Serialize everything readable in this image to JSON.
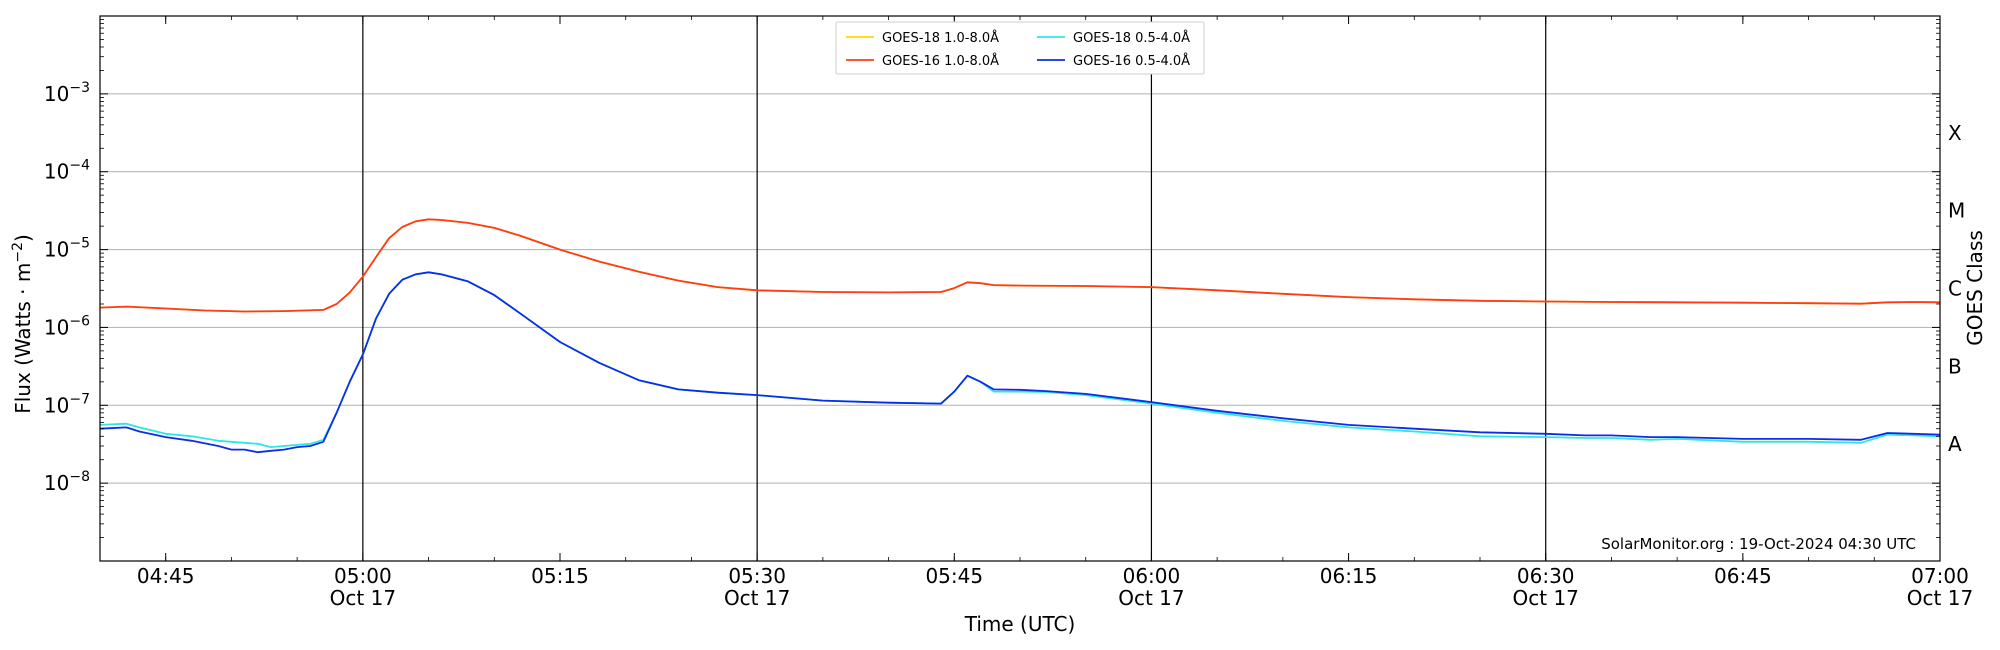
{
  "chart_data": {
    "type": "line",
    "xlabel": "Time (UTC)",
    "ylabel": "Flux (Watts · m⁻²)",
    "y2label": "GOES Class",
    "yscale": "log",
    "ylim": [
      1e-09,
      0.01
    ],
    "xlim": [
      "04:40",
      "07:00"
    ],
    "grid": "horizontal",
    "legend_position": "top-center",
    "credit": "SolarMonitor.org : 19-Oct-2024 04:30 UTC",
    "y_ticks": [
      {
        "value": 1e-08,
        "base": "10",
        "exp": "−8"
      },
      {
        "value": 1e-07,
        "base": "10",
        "exp": "−7"
      },
      {
        "value": 1e-06,
        "base": "10",
        "exp": "−6"
      },
      {
        "value": 1e-05,
        "base": "10",
        "exp": "−5"
      },
      {
        "value": 0.0001,
        "base": "10",
        "exp": "−4"
      },
      {
        "value": 0.001,
        "base": "10",
        "exp": "−3"
      }
    ],
    "goes_classes": [
      {
        "label": "A",
        "value": 3.16e-08
      },
      {
        "label": "B",
        "value": 3.16e-07
      },
      {
        "label": "C",
        "value": 3.16e-06
      },
      {
        "label": "M",
        "value": 3.16e-05
      },
      {
        "label": "X",
        "value": 0.000316
      }
    ],
    "x_ticks": [
      {
        "time": "04:45",
        "label": "04:45",
        "date": ""
      },
      {
        "time": "05:00",
        "label": "05:00",
        "date": "Oct 17"
      },
      {
        "time": "05:15",
        "label": "05:15",
        "date": ""
      },
      {
        "time": "05:30",
        "label": "05:30",
        "date": "Oct 17"
      },
      {
        "time": "05:45",
        "label": "05:45",
        "date": ""
      },
      {
        "time": "06:00",
        "label": "06:00",
        "date": "Oct 17"
      },
      {
        "time": "06:15",
        "label": "06:15",
        "date": ""
      },
      {
        "time": "06:30",
        "label": "06:30",
        "date": "Oct 17"
      },
      {
        "time": "06:45",
        "label": "06:45",
        "date": ""
      },
      {
        "time": "07:00",
        "label": "07:00",
        "date": "Oct 17"
      }
    ],
    "vlines": [
      "05:00",
      "05:30",
      "06:00",
      "06:30"
    ],
    "series": [
      {
        "name": "GOES-18 1.0-8.0Å",
        "color": "#ffd700",
        "x": [
          "04:40",
          "04:42",
          "04:45",
          "04:48",
          "04:51",
          "04:54",
          "04:57",
          "04:58",
          "04:59",
          "05:00",
          "05:01",
          "05:02",
          "05:03",
          "05:04",
          "05:05",
          "05:06",
          "05:08",
          "05:10",
          "05:12",
          "05:15",
          "05:18",
          "05:21",
          "05:24",
          "05:27",
          "05:30",
          "05:35",
          "05:40",
          "05:44",
          "05:45",
          "05:46",
          "05:47",
          "05:48",
          "05:50",
          "05:55",
          "06:00",
          "06:05",
          "06:10",
          "06:15",
          "06:20",
          "06:25",
          "06:30",
          "06:35",
          "06:40",
          "06:45",
          "06:50",
          "06:54",
          "06:56",
          "06:58",
          "07:00"
        ],
        "y": [
          1.8e-06,
          1.85e-06,
          1.75e-06,
          1.65e-06,
          1.6e-06,
          1.62e-06,
          1.68e-06,
          2e-06,
          2.8e-06,
          4.5e-06,
          8e-06,
          1.4e-05,
          1.95e-05,
          2.3e-05,
          2.45e-05,
          2.4e-05,
          2.2e-05,
          1.9e-05,
          1.5e-05,
          1e-05,
          7e-06,
          5.2e-06,
          4e-06,
          3.3e-06,
          3e-06,
          2.85e-06,
          2.82e-06,
          2.85e-06,
          3.2e-06,
          3.8e-06,
          3.7e-06,
          3.5e-06,
          3.45e-06,
          3.4e-06,
          3.3e-06,
          3e-06,
          2.7e-06,
          2.45e-06,
          2.3e-06,
          2.2e-06,
          2.15e-06,
          2.12e-06,
          2.1e-06,
          2.08e-06,
          2.05e-06,
          2.02e-06,
          2.1e-06,
          2.12e-06,
          2.1e-06
        ]
      },
      {
        "name": "GOES-16 1.0-8.0Å",
        "color": "#ff3b1a",
        "x": [
          "04:40",
          "04:42",
          "04:45",
          "04:48",
          "04:51",
          "04:54",
          "04:57",
          "04:58",
          "04:59",
          "05:00",
          "05:01",
          "05:02",
          "05:03",
          "05:04",
          "05:05",
          "05:06",
          "05:08",
          "05:10",
          "05:12",
          "05:15",
          "05:18",
          "05:21",
          "05:24",
          "05:27",
          "05:30",
          "05:35",
          "05:40",
          "05:44",
          "05:45",
          "05:46",
          "05:47",
          "05:48",
          "05:50",
          "05:55",
          "06:00",
          "06:05",
          "06:10",
          "06:15",
          "06:20",
          "06:25",
          "06:30",
          "06:35",
          "06:40",
          "06:45",
          "06:50",
          "06:54",
          "06:56",
          "06:58",
          "07:00"
        ],
        "y": [
          1.8e-06,
          1.85e-06,
          1.75e-06,
          1.65e-06,
          1.6e-06,
          1.62e-06,
          1.68e-06,
          2e-06,
          2.8e-06,
          4.5e-06,
          8e-06,
          1.4e-05,
          1.95e-05,
          2.3e-05,
          2.45e-05,
          2.4e-05,
          2.2e-05,
          1.9e-05,
          1.5e-05,
          1e-05,
          7e-06,
          5.2e-06,
          4e-06,
          3.3e-06,
          3e-06,
          2.85e-06,
          2.82e-06,
          2.85e-06,
          3.2e-06,
          3.8e-06,
          3.7e-06,
          3.5e-06,
          3.45e-06,
          3.4e-06,
          3.3e-06,
          3e-06,
          2.7e-06,
          2.45e-06,
          2.3e-06,
          2.2e-06,
          2.15e-06,
          2.12e-06,
          2.1e-06,
          2.08e-06,
          2.05e-06,
          2.02e-06,
          2.1e-06,
          2.12e-06,
          2.1e-06
        ]
      },
      {
        "name": "GOES-18 0.5-4.0Å",
        "color": "#2ee6e6",
        "x": [
          "04:40",
          "04:42",
          "04:43",
          "04:45",
          "04:47",
          "04:49",
          "04:50",
          "04:51",
          "04:52",
          "04:53",
          "04:54",
          "04:55",
          "04:56",
          "04:57",
          "04:58",
          "04:59",
          "05:00",
          "05:01",
          "05:02",
          "05:03",
          "05:04",
          "05:05",
          "05:06",
          "05:08",
          "05:10",
          "05:12",
          "05:15",
          "05:18",
          "05:21",
          "05:24",
          "05:27",
          "05:30",
          "05:35",
          "05:40",
          "05:44",
          "05:45",
          "05:46",
          "05:47",
          "05:48",
          "05:50",
          "05:52",
          "05:55",
          "06:00",
          "06:05",
          "06:10",
          "06:15",
          "06:20",
          "06:25",
          "06:30",
          "06:33",
          "06:35",
          "06:38",
          "06:40",
          "06:45",
          "06:50",
          "06:54",
          "06:56",
          "06:58",
          "07:00"
        ],
        "y": [
          5.6e-08,
          5.8e-08,
          5.2e-08,
          4.3e-08,
          4e-08,
          3.5e-08,
          3.4e-08,
          3.3e-08,
          3.2e-08,
          2.9e-08,
          3e-08,
          3.1e-08,
          3.2e-08,
          3.6e-08,
          8e-08,
          2e-07,
          4.5e-07,
          1.3e-06,
          2.7e-06,
          4.1e-06,
          4.8e-06,
          5.1e-06,
          4.8e-06,
          3.9e-06,
          2.6e-06,
          1.5e-06,
          6.5e-07,
          3.5e-07,
          2.1e-07,
          1.6e-07,
          1.45e-07,
          1.35e-07,
          1.15e-07,
          1.08e-07,
          1.05e-07,
          1.5e-07,
          2.4e-07,
          2e-07,
          1.5e-07,
          1.5e-07,
          1.48e-07,
          1.35e-07,
          1.05e-07,
          8e-08,
          6.3e-08,
          5.2e-08,
          4.6e-08,
          4e-08,
          3.9e-08,
          3.8e-08,
          3.8e-08,
          3.6e-08,
          3.7e-08,
          3.4e-08,
          3.4e-08,
          3.3e-08,
          4.2e-08,
          4.1e-08,
          4e-08
        ]
      },
      {
        "name": "GOES-16 0.5-4.0Å",
        "color": "#0a2ee6",
        "x": [
          "04:40",
          "04:42",
          "04:43",
          "04:45",
          "04:47",
          "04:49",
          "04:50",
          "04:51",
          "04:52",
          "04:53",
          "04:54",
          "04:55",
          "04:56",
          "04:57",
          "04:58",
          "04:59",
          "05:00",
          "05:01",
          "05:02",
          "05:03",
          "05:04",
          "05:05",
          "05:06",
          "05:08",
          "05:10",
          "05:12",
          "05:15",
          "05:18",
          "05:21",
          "05:24",
          "05:27",
          "05:30",
          "05:35",
          "05:40",
          "05:44",
          "05:45",
          "05:46",
          "05:47",
          "05:48",
          "05:50",
          "05:52",
          "05:55",
          "06:00",
          "06:05",
          "06:10",
          "06:15",
          "06:20",
          "06:25",
          "06:30",
          "06:33",
          "06:35",
          "06:38",
          "06:40",
          "06:45",
          "06:50",
          "06:54",
          "06:56",
          "06:58",
          "07:00"
        ],
        "y": [
          5e-08,
          5.2e-08,
          4.6e-08,
          3.9e-08,
          3.5e-08,
          3e-08,
          2.7e-08,
          2.7e-08,
          2.5e-08,
          2.6e-08,
          2.7e-08,
          2.9e-08,
          3e-08,
          3.4e-08,
          8e-08,
          2e-07,
          4.5e-07,
          1.3e-06,
          2.7e-06,
          4.1e-06,
          4.8e-06,
          5.1e-06,
          4.8e-06,
          3.9e-06,
          2.6e-06,
          1.5e-06,
          6.5e-07,
          3.5e-07,
          2.1e-07,
          1.6e-07,
          1.45e-07,
          1.35e-07,
          1.15e-07,
          1.08e-07,
          1.05e-07,
          1.5e-07,
          2.4e-07,
          2e-07,
          1.6e-07,
          1.58e-07,
          1.52e-07,
          1.4e-07,
          1.1e-07,
          8.5e-08,
          6.8e-08,
          5.6e-08,
          5e-08,
          4.5e-08,
          4.3e-08,
          4.1e-08,
          4.1e-08,
          3.9e-08,
          3.9e-08,
          3.7e-08,
          3.7e-08,
          3.6e-08,
          4.4e-08,
          4.3e-08,
          4.2e-08
        ]
      }
    ]
  }
}
